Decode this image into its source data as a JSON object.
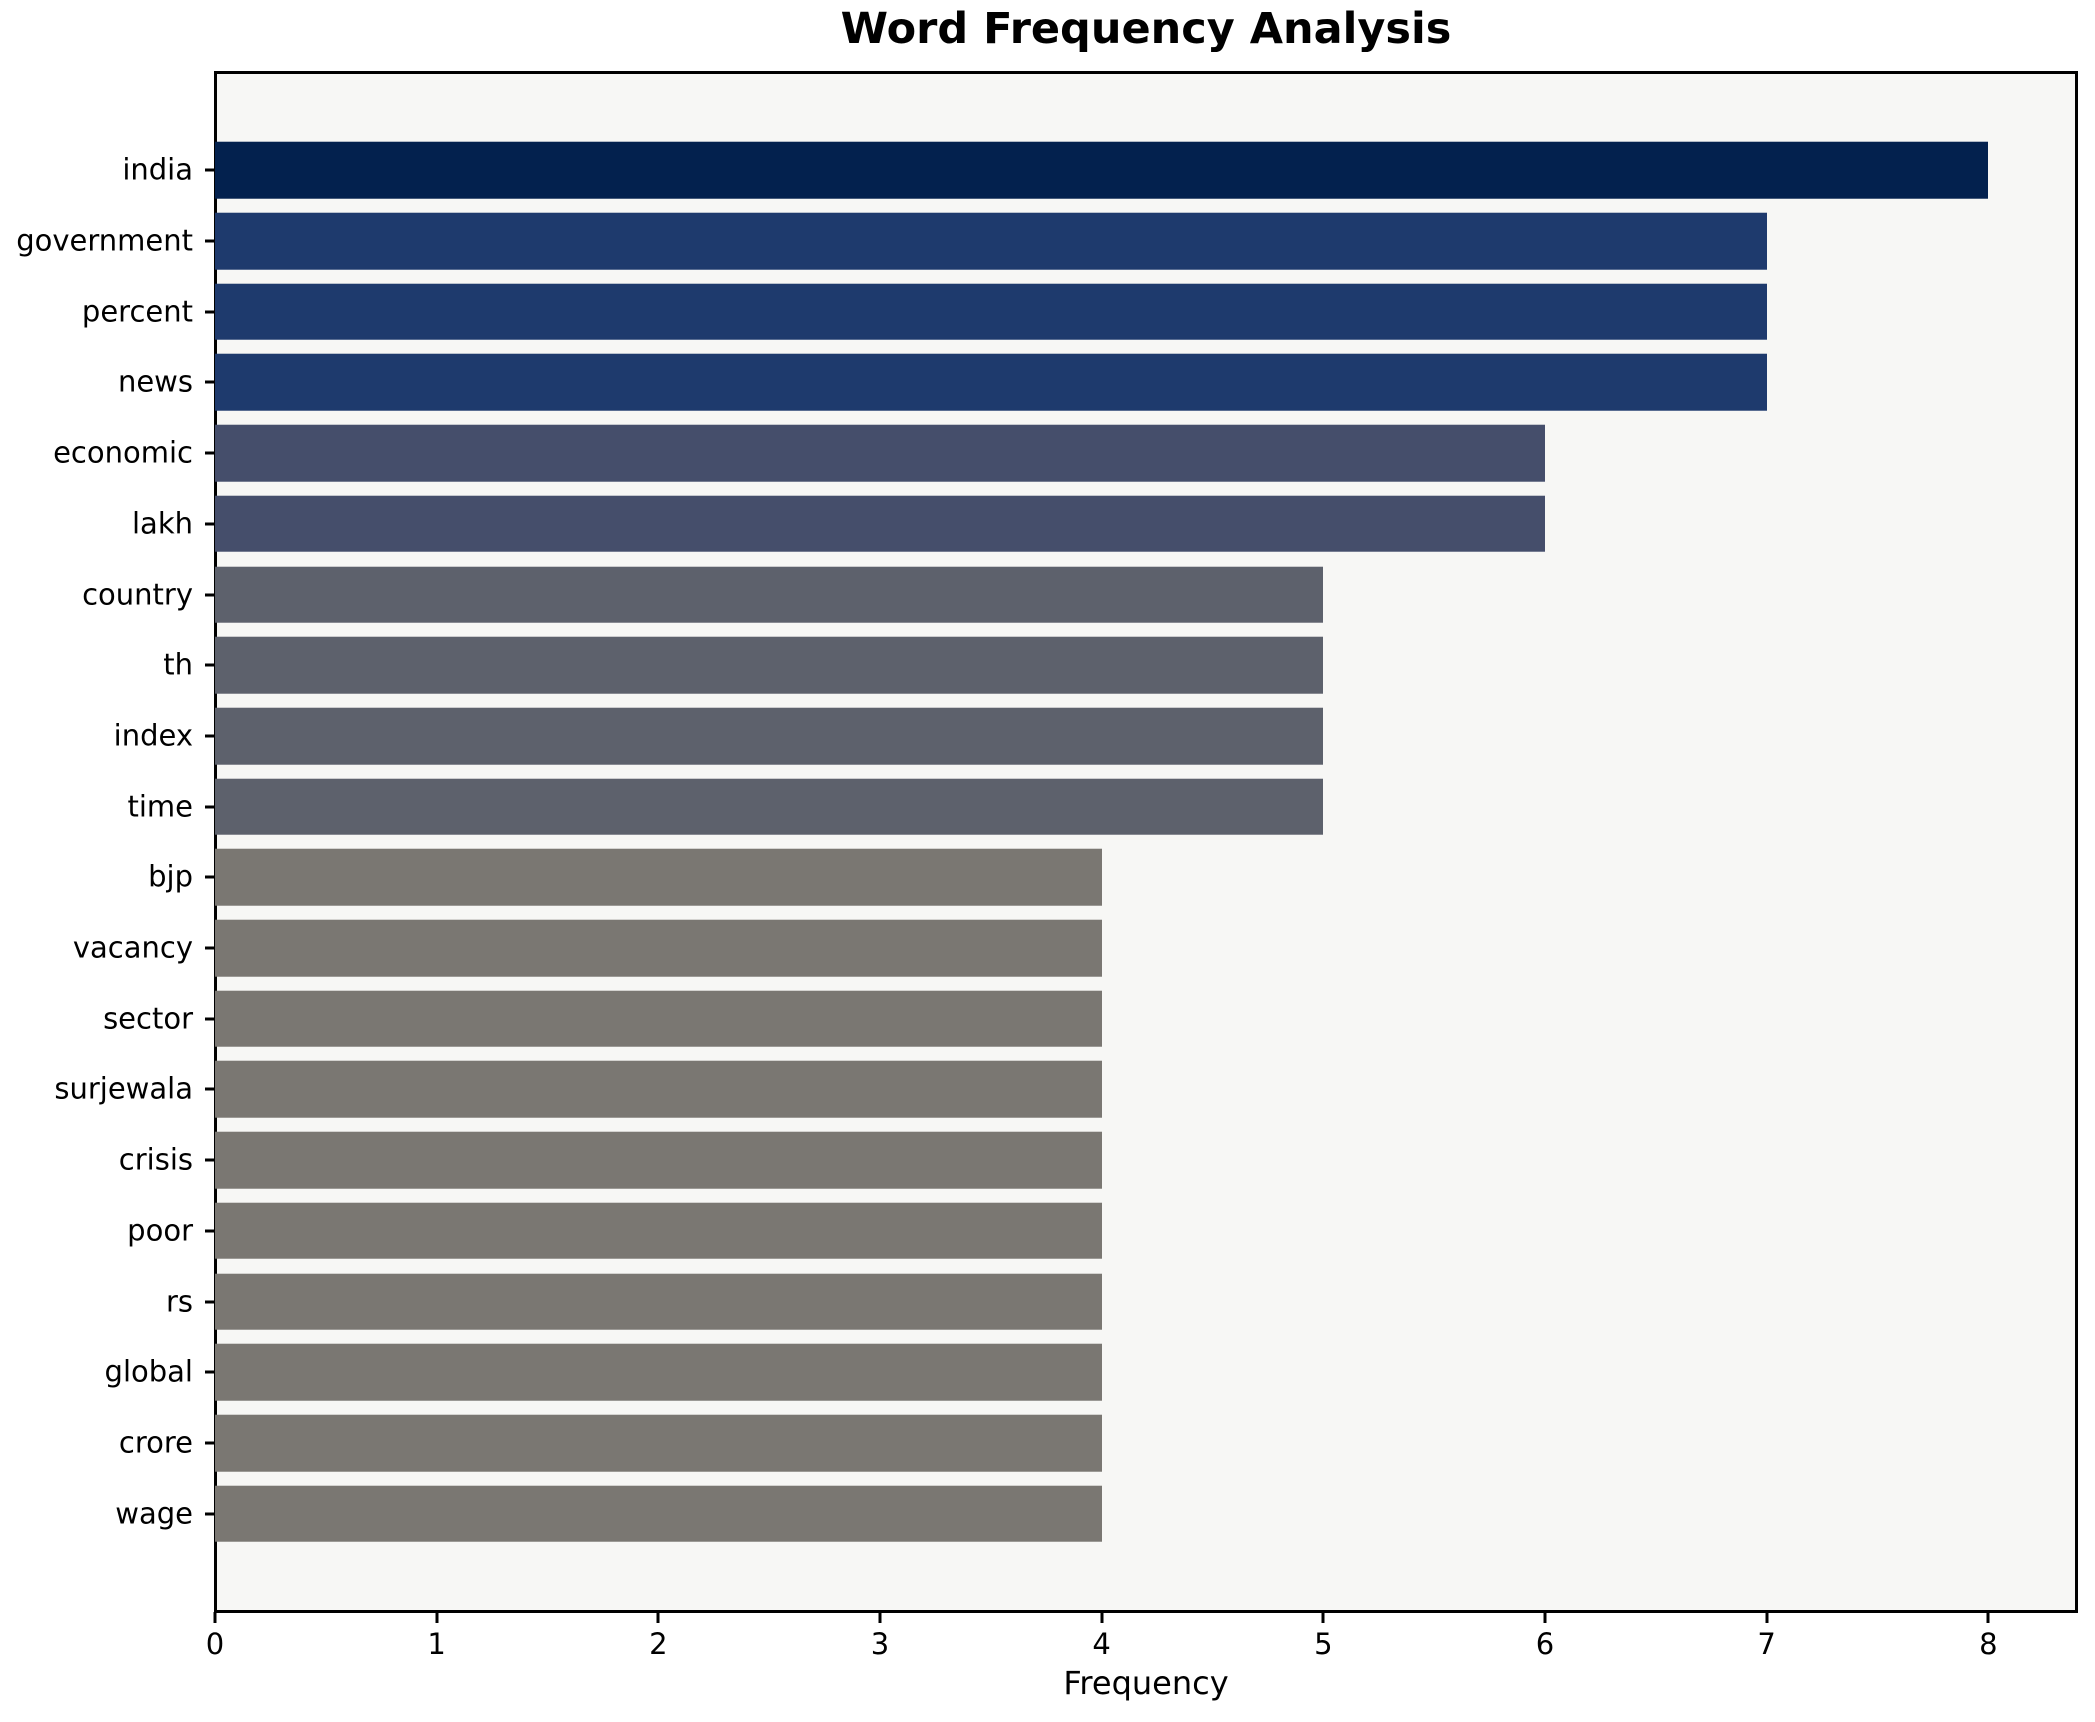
{
  "chart_data": {
    "type": "bar",
    "orientation": "horizontal",
    "title": "Word Frequency Analysis",
    "xlabel": "Frequency",
    "ylabel": "",
    "categories": [
      "india",
      "government",
      "percent",
      "news",
      "economic",
      "lakh",
      "country",
      "th",
      "index",
      "time",
      "bjp",
      "vacancy",
      "sector",
      "surjewala",
      "crisis",
      "poor",
      "rs",
      "global",
      "crore",
      "wage"
    ],
    "values": [
      8,
      7,
      7,
      7,
      6,
      6,
      5,
      5,
      5,
      5,
      4,
      4,
      4,
      4,
      4,
      4,
      4,
      4,
      4,
      4
    ],
    "bar_colors": [
      "#03214e",
      "#1e3a6d",
      "#1e3a6d",
      "#1e3a6d",
      "#454e6b",
      "#454e6b",
      "#5d616c",
      "#5d616c",
      "#5d616c",
      "#5d616c",
      "#7a7772",
      "#7a7772",
      "#7a7772",
      "#7a7772",
      "#7a7772",
      "#7a7772",
      "#7a7772",
      "#7a7772",
      "#7a7772",
      "#7a7772"
    ],
    "xlim": [
      0,
      8.4
    ],
    "xticks": [
      0,
      1,
      2,
      3,
      4,
      5,
      6,
      7,
      8
    ],
    "grid": false,
    "legend": null,
    "plot_background": "#f7f7f5",
    "figure_background": "#ffffff",
    "spine_color": "#000000"
  }
}
